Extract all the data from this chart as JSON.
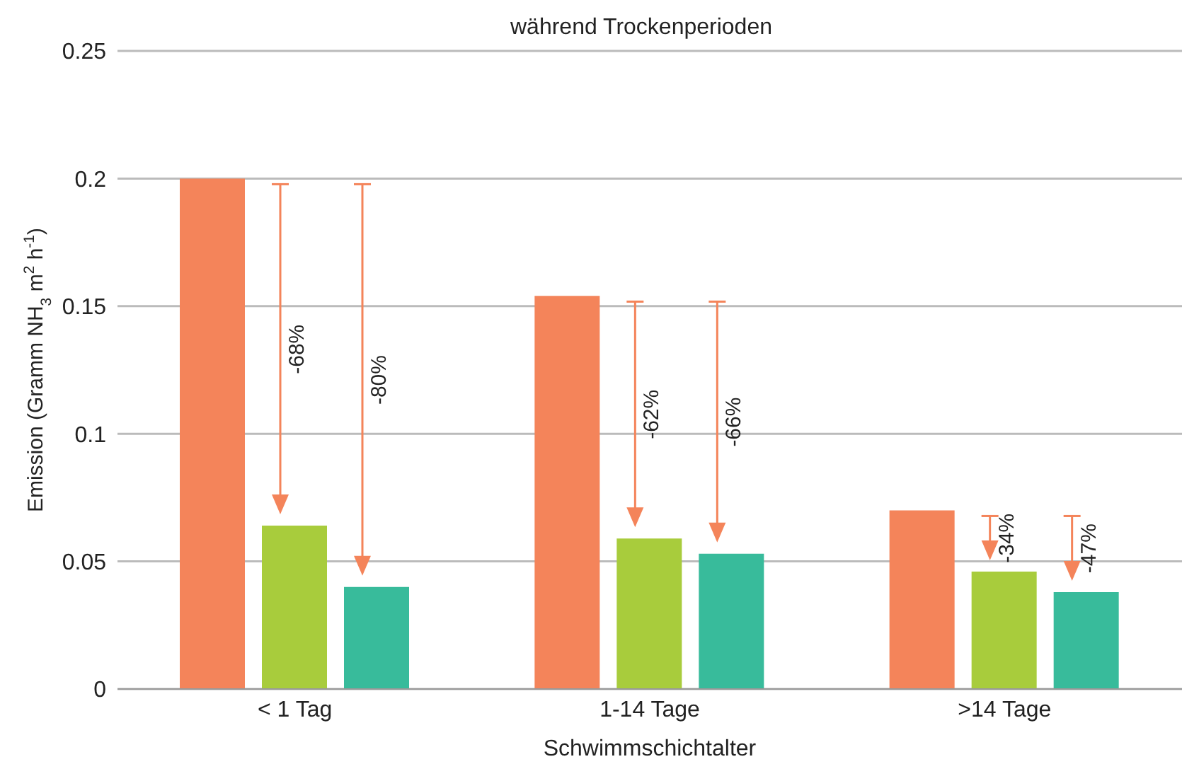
{
  "chart_data": {
    "type": "bar",
    "title": "während Trockenperioden",
    "xlabel": "Schwimmschichtalter",
    "ylabel": "Emission (Gramm NH$_{3}$ m$^{2}$ h$^{-1}$)",
    "categories": [
      "< 1 Tag",
      "1-14 Tage",
      ">14 Tage"
    ],
    "series": [
      {
        "color": "#f4845a",
        "values": [
          0.2,
          0.154,
          0.07
        ]
      },
      {
        "color": "#a8cc3c",
        "values": [
          0.064,
          0.059,
          0.046
        ]
      },
      {
        "color": "#38bb9b",
        "values": [
          0.04,
          0.053,
          0.038
        ]
      }
    ],
    "ylim": [
      0,
      0.25
    ],
    "yticks": [
      0,
      0.05,
      0.1,
      0.15,
      0.2,
      0.25
    ],
    "grid": "y",
    "legend": false,
    "annotations": [
      "-68%",
      "-80%",
      "-62%",
      "-66%",
      "-34%",
      "-47%"
    ]
  }
}
